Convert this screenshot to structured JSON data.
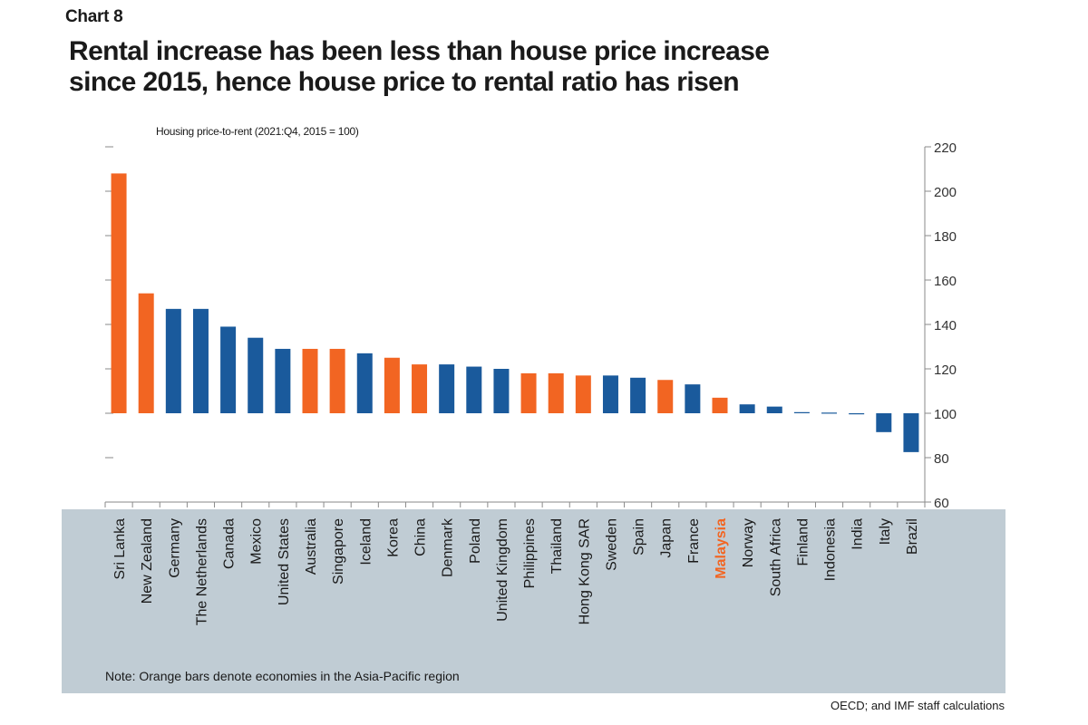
{
  "header": {
    "chart_number": "Chart 8",
    "title_line1": "Rental increase has been less than house price increase",
    "title_line2": "since 2015, hence house price to rental ratio has risen"
  },
  "footer": {
    "note": "Note: Orange bars denote economies in the Asia-Pacific region",
    "source": "OECD; and IMF staff calculations"
  },
  "colors": {
    "asia_pacific": "#f26522",
    "other": "#1a5a9c",
    "axis": "#8a8a8a",
    "band": "#c0ccd4",
    "highlight_label": "#f26522"
  },
  "chart_data": {
    "type": "bar",
    "title": "Rental increase has been less than house price increase since 2015, hence house price to rental ratio has risen",
    "ylabel": "Housing price-to-rent (2021:Q4, 2015 = 100)",
    "xlabel": "",
    "ylim": [
      60,
      220
    ],
    "yticks": [
      60,
      80,
      100,
      120,
      140,
      160,
      180,
      200,
      220
    ],
    "baseline": 100,
    "y_axis_side": "right",
    "categories": [
      "Sri Lanka",
      "New Zealand",
      "Germany",
      "The Netherlands",
      "Canada",
      "Mexico",
      "United States",
      "Australia",
      "Singapore",
      "Iceland",
      "Korea",
      "China",
      "Denmark",
      "Poland",
      "United Kingdom",
      "Philippines",
      "Thailand",
      "Hong Kong SAR",
      "Sweden",
      "Spain",
      "Japan",
      "France",
      "Malaysia",
      "Norway",
      "South Africa",
      "Finland",
      "Indonesia",
      "India",
      "Italy",
      "Brazil"
    ],
    "values": [
      208,
      154,
      147,
      147,
      139,
      134,
      129,
      129,
      129,
      127,
      125,
      122,
      122,
      121,
      120,
      118,
      118,
      117,
      117,
      116,
      115,
      113,
      107,
      104,
      103,
      100.5,
      100.3,
      99.7,
      91.5,
      82.5
    ],
    "asia_pacific": [
      true,
      true,
      false,
      false,
      false,
      false,
      false,
      true,
      true,
      false,
      true,
      true,
      false,
      false,
      false,
      true,
      true,
      true,
      false,
      false,
      true,
      false,
      true,
      false,
      false,
      false,
      false,
      false,
      false,
      false
    ],
    "highlighted_category": "Malaysia"
  }
}
